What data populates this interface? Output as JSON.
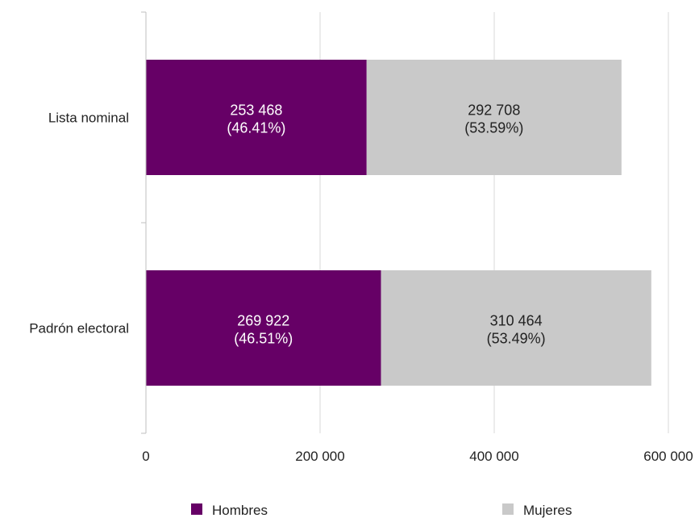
{
  "chart_data": {
    "type": "bar",
    "orientation": "horizontal",
    "stacked": true,
    "categories": [
      "Lista nominal",
      "Padrón electoral"
    ],
    "series": [
      {
        "name": "Hombres",
        "color": "#660066",
        "values": [
          253468,
          269922
        ],
        "labels": [
          "253 468",
          "269 922"
        ],
        "percent_labels": [
          "(46.41%)",
          "(46.51%)"
        ],
        "label_color": "#ffffff"
      },
      {
        "name": "Mujeres",
        "color": "#c9c9c9",
        "values": [
          292708,
          310464
        ],
        "labels": [
          "292 708",
          "310 464"
        ],
        "percent_labels": [
          "(53.59%)",
          "(53.49%)"
        ],
        "label_color": "#222222"
      }
    ],
    "xlim": [
      0,
      600000
    ],
    "x_ticks": [
      0,
      200000,
      400000,
      600000
    ],
    "x_tick_labels": [
      "0",
      "200 000",
      "400 000",
      "600 000"
    ],
    "grid": "vertical",
    "legend_position": "bottom"
  }
}
